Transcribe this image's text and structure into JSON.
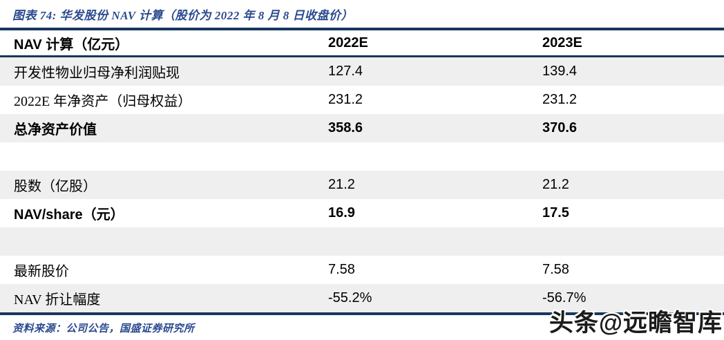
{
  "figure": {
    "title": "图表 74:  华发股份 NAV 计算（股价为 2022 年 8 月 8 日收盘价）",
    "source": "资料来源：公司公告，国盛证券研究所",
    "watermark": "头条@远瞻智库"
  },
  "colors": {
    "border_navy": "#17375E",
    "caption_blue": "#2B4A8F",
    "row_stripe_gray": "#EFEFEF"
  },
  "table": {
    "headers": [
      "NAV 计算（亿元）",
      "2022E",
      "2023E"
    ],
    "rows": [
      {
        "label": "开发性物业归母净利润贴现",
        "v2022": "127.4",
        "v2023": "139.4",
        "bold": false
      },
      {
        "label": "2022E 年净资产（归母权益）",
        "v2022": "231.2",
        "v2023": "231.2",
        "bold": false
      },
      {
        "label": "总净资产价值",
        "v2022": "358.6",
        "v2023": "370.6",
        "bold": true
      },
      {
        "label": "",
        "v2022": "",
        "v2023": "",
        "bold": false
      },
      {
        "label": "股数（亿股）",
        "v2022": "21.2",
        "v2023": "21.2",
        "bold": false
      },
      {
        "label": "NAV/share（元）",
        "v2022": "16.9",
        "v2023": "17.5",
        "bold": true
      },
      {
        "label": "",
        "v2022": "",
        "v2023": "",
        "bold": false
      },
      {
        "label": "最新股价",
        "v2022": "7.58",
        "v2023": "7.58",
        "bold": false
      },
      {
        "label": "NAV 折让幅度",
        "v2022": "-55.2%",
        "v2023": "-56.7%",
        "bold": false
      }
    ]
  },
  "chart_data": {
    "type": "table",
    "title": "华发股份 NAV 计算（股价为 2022 年 8 月 8 日收盘价）",
    "columns": [
      "NAV 计算（亿元）",
      "2022E",
      "2023E"
    ],
    "rows": [
      [
        "开发性物业归母净利润贴现",
        127.4,
        139.4
      ],
      [
        "2022E 年净资产（归母权益）",
        231.2,
        231.2
      ],
      [
        "总净资产价值",
        358.6,
        370.6
      ],
      [
        "股数（亿股）",
        21.2,
        21.2
      ],
      [
        "NAV/share（元）",
        16.9,
        17.5
      ],
      [
        "最新股价",
        7.58,
        7.58
      ],
      [
        "NAV 折让幅度",
        "-55.2%",
        "-56.7%"
      ]
    ]
  }
}
